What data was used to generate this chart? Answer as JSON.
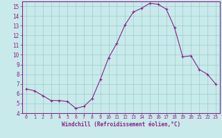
{
  "x": [
    0,
    1,
    2,
    3,
    4,
    5,
    6,
    7,
    8,
    9,
    10,
    11,
    12,
    13,
    14,
    15,
    16,
    17,
    18,
    19,
    20,
    21,
    22,
    23
  ],
  "y": [
    6.5,
    6.3,
    5.8,
    5.3,
    5.3,
    5.2,
    4.5,
    4.7,
    5.5,
    7.5,
    9.7,
    11.2,
    13.1,
    14.4,
    14.8,
    15.3,
    15.2,
    14.7,
    12.8,
    9.8,
    9.9,
    8.5,
    8.0,
    7.0
  ],
  "xlabel": "Windchill (Refroidissement éolien,°C)",
  "ylim": [
    4,
    15.5
  ],
  "xlim": [
    -0.5,
    23.5
  ],
  "yticks": [
    4,
    5,
    6,
    7,
    8,
    9,
    10,
    11,
    12,
    13,
    14,
    15
  ],
  "xtick_labels": [
    "0",
    "1",
    "2",
    "3",
    "4",
    "5",
    "6",
    "7",
    "8",
    "9",
    "10",
    "11",
    "12",
    "13",
    "14",
    "15",
    "16",
    "17",
    "18",
    "19",
    "20",
    "21",
    "22",
    "23"
  ],
  "line_color": "#882288",
  "marker_color": "#882288",
  "bg_color": "#c8eaea",
  "grid_color": "#99cccc",
  "xlabel_color": "#882288",
  "tick_color": "#882288",
  "spine_color": "#882288"
}
